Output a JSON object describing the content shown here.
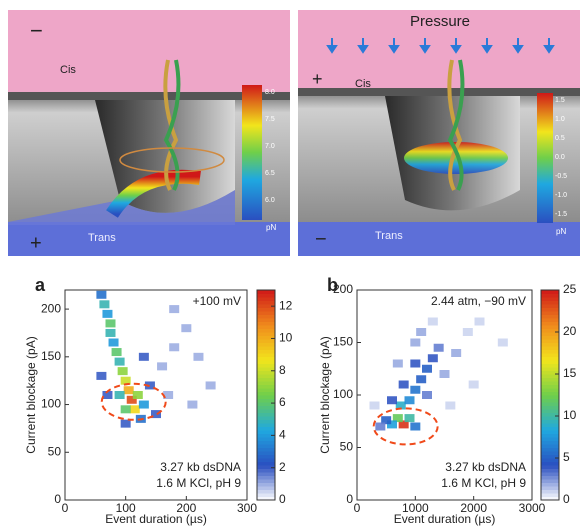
{
  "illustrations": [
    {
      "top_sign": "−",
      "top_label": "Cis",
      "bottom_sign": "+",
      "bottom_label": "Trans",
      "colorbar_ticks": [
        "8.0",
        "7.5",
        "7.0",
        "6.5",
        "6.0"
      ],
      "colorbar_unit": "pN"
    },
    {
      "title": "Pressure",
      "top_sign": "+",
      "top_label": "Cis",
      "bottom_sign": "−",
      "bottom_label": "Trans",
      "colorbar_ticks": [
        "1.5",
        "1.0",
        "0.5",
        "0.0",
        "-0.5",
        "-1.0",
        "-1.5"
      ],
      "colorbar_unit": "pN"
    }
  ],
  "chart_data": [
    {
      "type": "heatmap",
      "panel": "a",
      "xlabel": "Event duration (µs)",
      "ylabel": "Current blockage (pA)",
      "annotations": [
        "+100 mV",
        "3.27 kb dsDNA",
        "1.6 M KCl, pH 9"
      ],
      "xlim": [
        0,
        300
      ],
      "xticks": [
        0,
        100,
        200,
        300
      ],
      "ylim": [
        0,
        220
      ],
      "yticks": [
        0,
        50,
        100,
        150,
        200
      ],
      "clim": [
        0,
        13
      ],
      "colorbar_ticks": [
        0,
        2,
        4,
        6,
        8,
        10,
        12
      ],
      "colormap": [
        "#ffffff",
        "#2a4fc0",
        "#1fa8e0",
        "#6fcf4a",
        "#f2e51c",
        "#f08a1c",
        "#d01818"
      ],
      "x": [
        60,
        65,
        70,
        75,
        75,
        80,
        85,
        90,
        95,
        100,
        105,
        110,
        115,
        120,
        100,
        130,
        90,
        125,
        140,
        160,
        180,
        200,
        150,
        170,
        60,
        70,
        220,
        240,
        210,
        100,
        180,
        130
      ],
      "y": [
        215,
        205,
        195,
        185,
        175,
        165,
        155,
        145,
        135,
        125,
        115,
        105,
        95,
        110,
        95,
        100,
        110,
        85,
        120,
        140,
        160,
        180,
        90,
        110,
        130,
        110,
        150,
        120,
        100,
        80,
        200,
        150
      ],
      "values": [
        3,
        5,
        4,
        6,
        5,
        4,
        6,
        5,
        7,
        8,
        10,
        12,
        9,
        7,
        6,
        4,
        5,
        3,
        2,
        1,
        1,
        1,
        2,
        1,
        2,
        2,
        1,
        1,
        1,
        2,
        1,
        2
      ]
    },
    {
      "type": "heatmap",
      "panel": "b",
      "xlabel": "Event duration (µs)",
      "ylabel": "Current blockage (pA)",
      "annotations": [
        "2.44 atm, −90 mV",
        "3.27 kb dsDNA",
        "1.6 M KCl, pH 9"
      ],
      "xlim": [
        0,
        3000
      ],
      "xticks": [
        0,
        1000,
        2000,
        3000
      ],
      "ylim": [
        0,
        200
      ],
      "yticks": [
        0,
        50,
        100,
        150,
        200
      ],
      "clim": [
        0,
        25
      ],
      "colorbar_ticks": [
        0,
        5,
        10,
        15,
        20,
        25
      ],
      "colormap": [
        "#ffffff",
        "#2a4fc0",
        "#1fa8e0",
        "#6fcf4a",
        "#f2e51c",
        "#f08a1c",
        "#d01818"
      ],
      "x": [
        800,
        700,
        900,
        600,
        1000,
        500,
        750,
        900,
        1000,
        1100,
        1200,
        1300,
        1000,
        1400,
        800,
        600,
        1200,
        1500,
        1700,
        1900,
        2100,
        2500,
        1100,
        1300,
        400,
        300,
        1600,
        2000,
        700,
        1000
      ],
      "y": [
        72,
        78,
        78,
        72,
        70,
        76,
        90,
        95,
        105,
        115,
        125,
        135,
        130,
        145,
        110,
        95,
        100,
        120,
        140,
        160,
        170,
        150,
        160,
        170,
        70,
        90,
        90,
        110,
        130,
        150
      ],
      "values": [
        24,
        12,
        10,
        8,
        6,
        5,
        9,
        7,
        6,
        5,
        5,
        4,
        4,
        3,
        4,
        4,
        3,
        2,
        2,
        1,
        1,
        1,
        2,
        1,
        3,
        1,
        1,
        1,
        2,
        2
      ]
    }
  ]
}
